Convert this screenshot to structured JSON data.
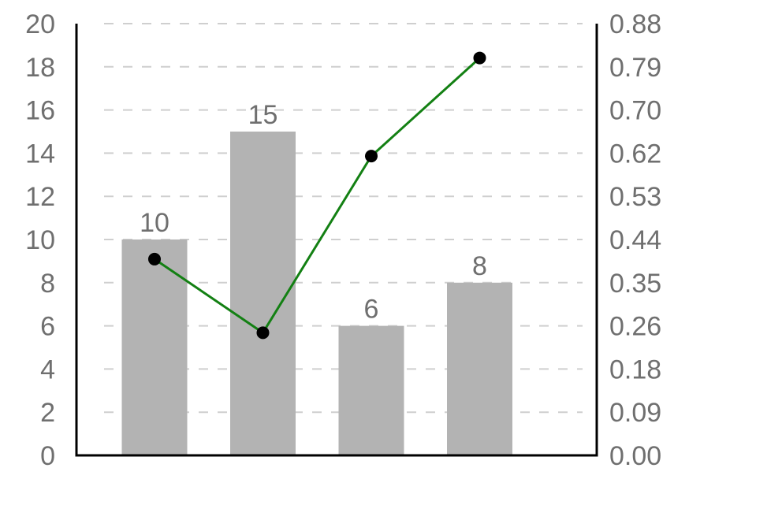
{
  "chart_data": {
    "type": "bar",
    "categories": [
      "",
      "",
      "",
      ""
    ],
    "bars": {
      "values": [
        10,
        15,
        6,
        8
      ],
      "color": "#b3b3b3",
      "labels": [
        "10",
        "15",
        "6",
        "8"
      ]
    },
    "line": {
      "values": [
        0.4,
        0.25,
        0.61,
        0.81
      ],
      "color": "#138013",
      "marker_color": "#000000"
    },
    "left_axis": {
      "ylim": [
        0,
        20
      ],
      "ticks": [
        0,
        2,
        4,
        6,
        8,
        10,
        12,
        14,
        16,
        18,
        20
      ],
      "tick_labels": [
        "0",
        "2",
        "4",
        "6",
        "8",
        "10",
        "12",
        "14",
        "16",
        "18",
        "20"
      ]
    },
    "right_axis": {
      "ylim": [
        0,
        0.88
      ],
      "tick_labels": [
        "0.00",
        "0.09",
        "0.18",
        "0.26",
        "0.35",
        "0.44",
        "0.53",
        "0.62",
        "0.70",
        "0.79",
        "0.88"
      ]
    },
    "grid": true,
    "grid_style": "dashed",
    "title": "",
    "xlabel": "",
    "ylabel": "",
    "y2label": ""
  }
}
